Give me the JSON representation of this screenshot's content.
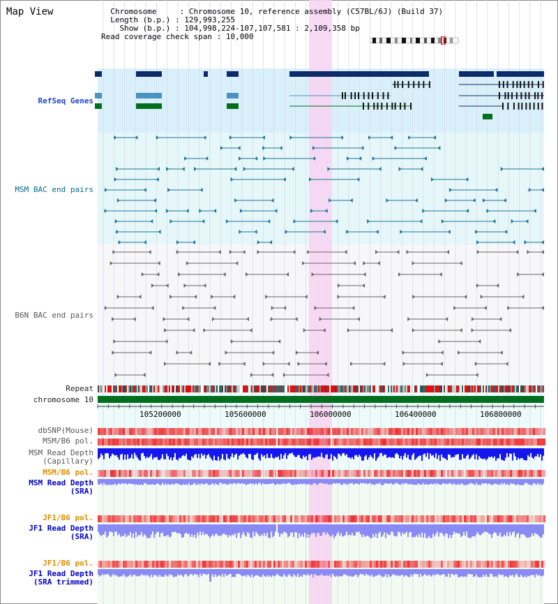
{
  "title": "Map View",
  "info": {
    "chromosome_label": "Chromosome",
    "chromosome_value": "Chromosome 10, reference assembly (C57BL/6J) (Build 37)",
    "length_label": "Length (b.p.)",
    "length_value": "129,993,255",
    "show_label": "Show (b.p.)",
    "show_value": "104,998,224-107,107,581 : 2,109,358 bp",
    "coverage_label": "Read coverage check span",
    "coverage_value": "10,000"
  },
  "tracks": {
    "refseq": "RefSeq Genes",
    "msm_bac": "MSM BAC end pairs",
    "b6n_bac": "B6N BAC end pairs",
    "repeat": "Repeat",
    "chromosome": "chromosome 10",
    "dbsnp": "dbSNP(Mouse)",
    "msm_b6_pol_1": "MSM/B6 pol.",
    "msm_read_depth_cap_1": "MSM Read Depth",
    "msm_read_depth_cap_2": "(Capillary)",
    "msm_b6_pol_2": "MSM/B6 pol.",
    "msm_read_depth_sra_1": "MSM Read Depth",
    "msm_read_depth_sra_2": "(SRA)",
    "jf1_b6_pol_1": "JF1/B6 pol.",
    "jf1_read_depth_sra_1": "JF1 Read Depth",
    "jf1_read_depth_sra_2": "(SRA)",
    "jf1_b6_pol_2": "JF1/B6 pol.",
    "jf1_read_depth_trim_1": "JF1 Read Depth",
    "jf1_read_depth_trim_2": "(SRA trimmed)"
  },
  "axis_ticks": [
    "105200000",
    "105600000",
    "106000000",
    "106400000",
    "106800000"
  ],
  "colors": {
    "refseq_bg": "#d9f0fa",
    "msm_bg": "#e6f7fa",
    "b6n_bg": "#f7f7fa",
    "highlight": "#f7d4f2",
    "gene_dark": "#0d2b6b",
    "gene_light": "#4a92c0",
    "gene_green": "#006e1e",
    "msm_pair": "#1a7394",
    "b6n_pair": "#666666",
    "chromosome_bar": "#006e1e",
    "read_depth_capillary": "#1515f0",
    "read_depth_sra": "#8a8af5",
    "polymorphism": "#ee3333"
  }
}
